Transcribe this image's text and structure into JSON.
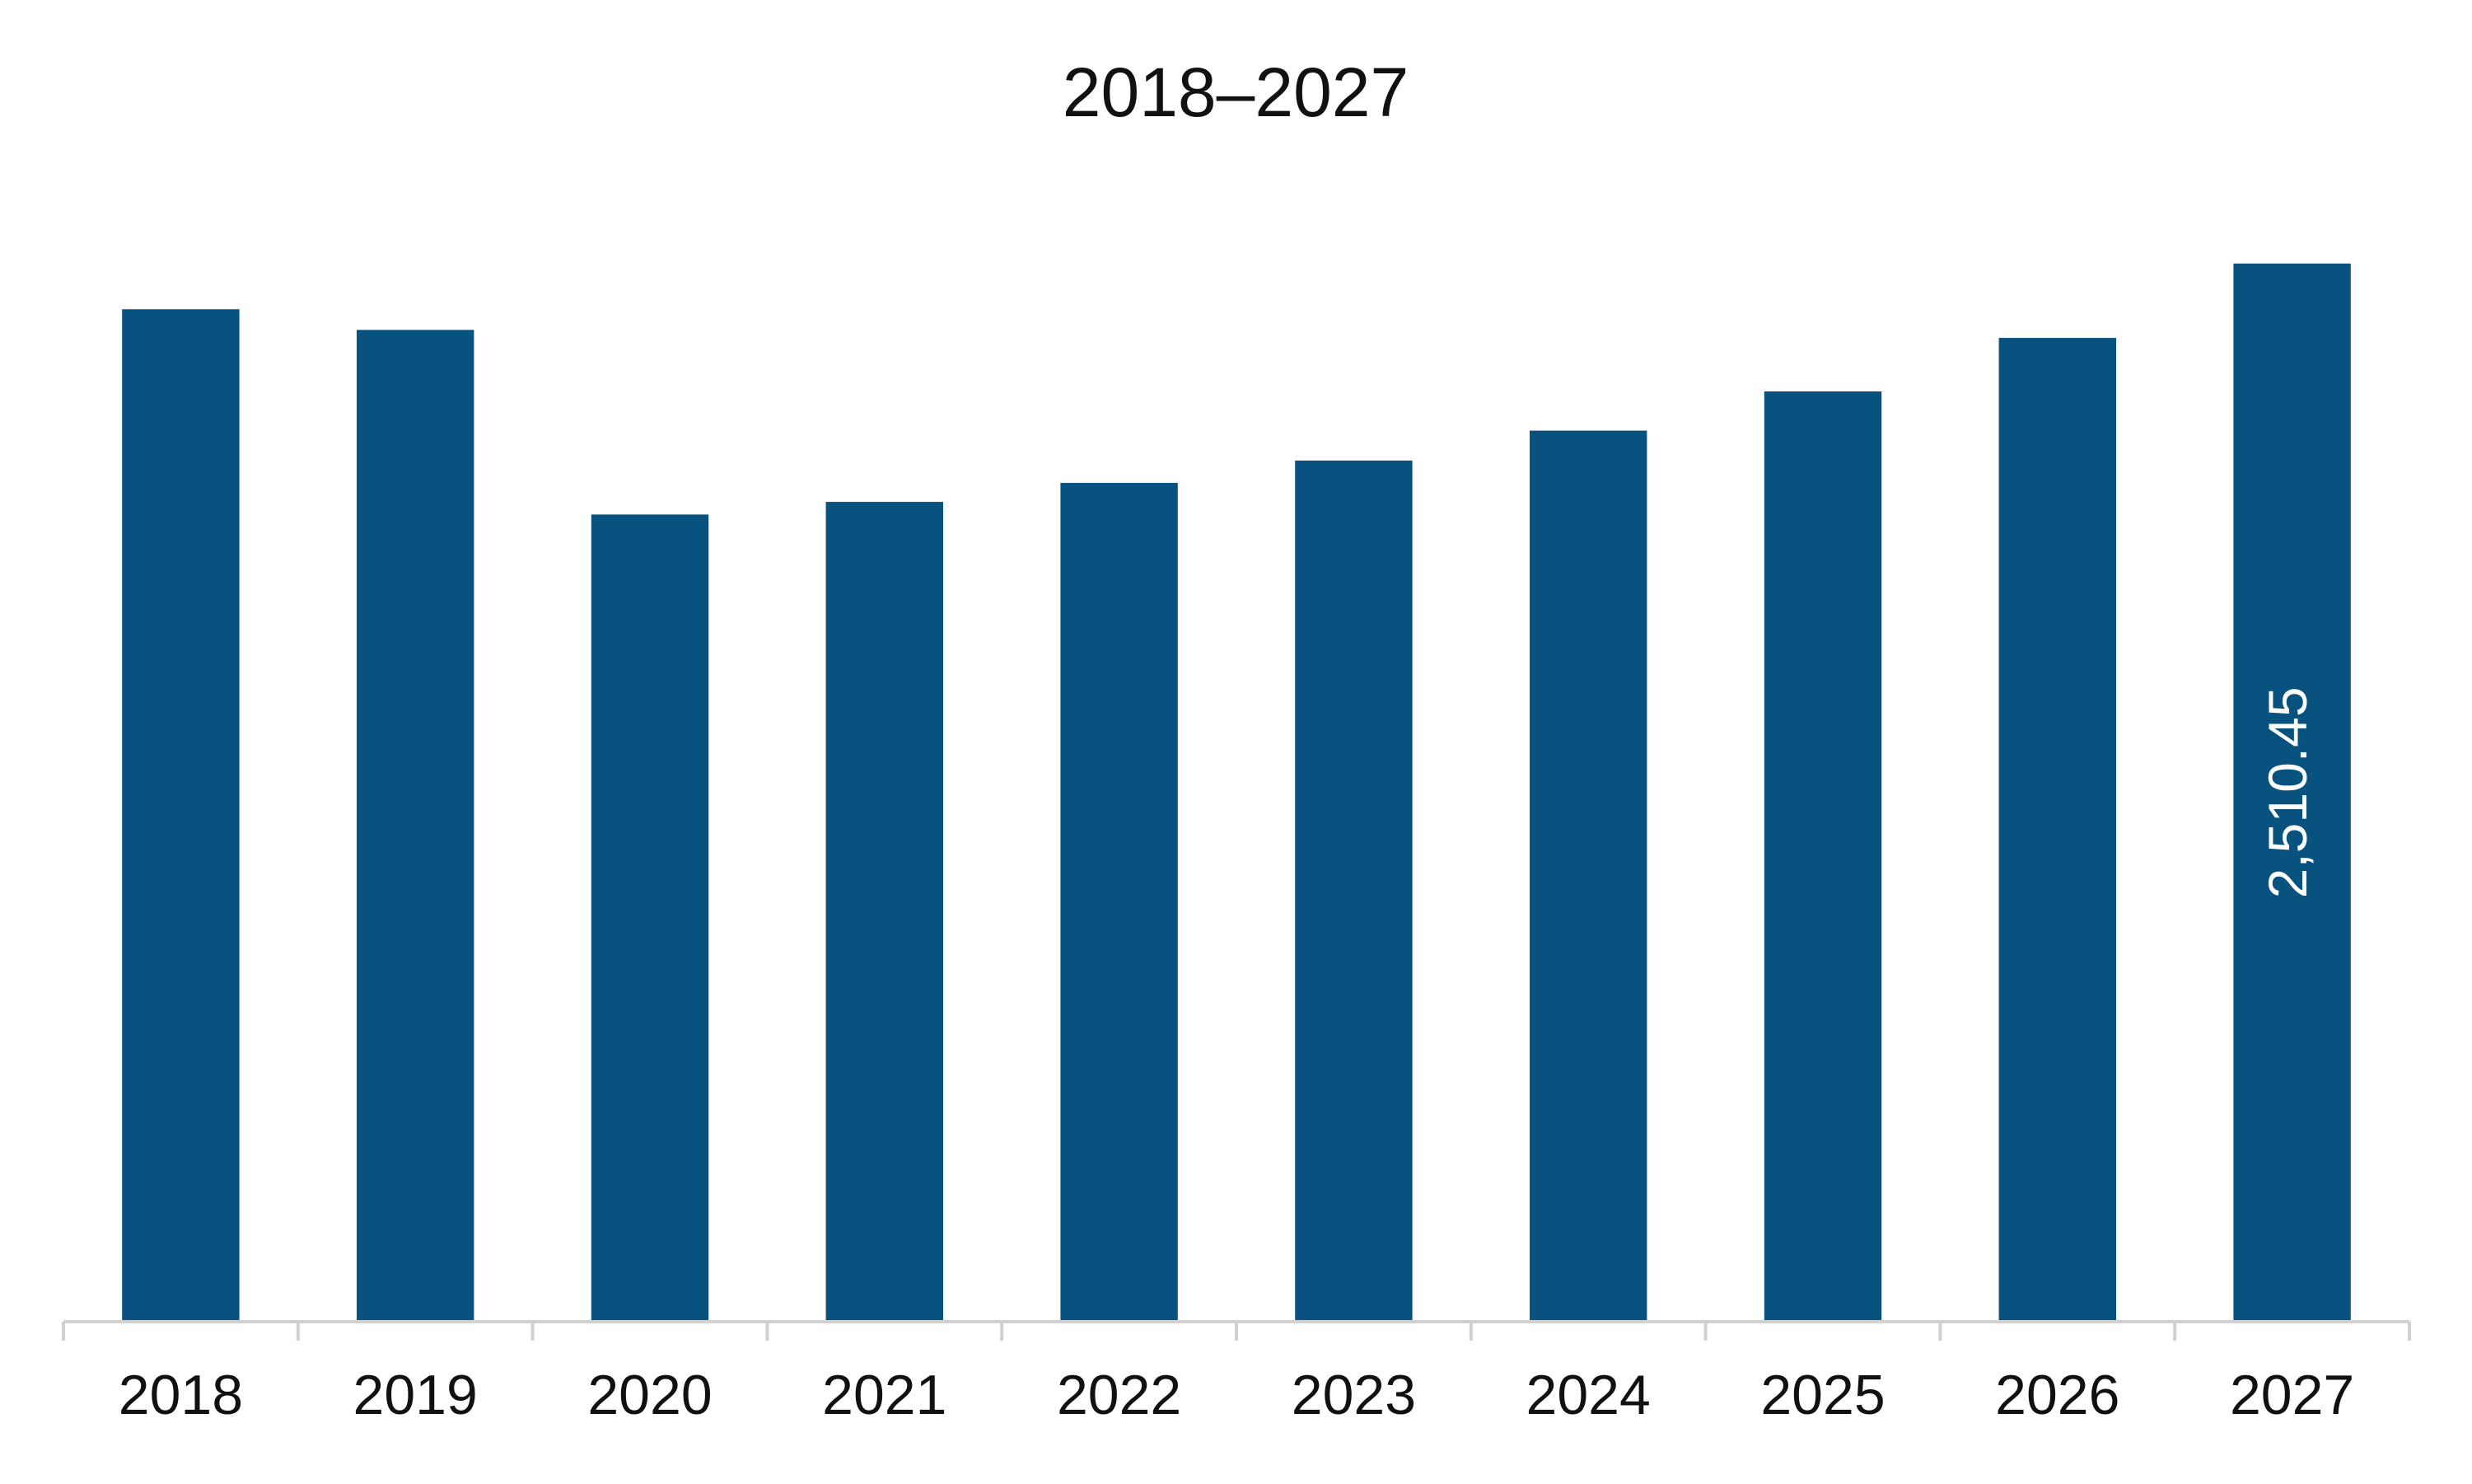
{
  "chart_data": {
    "type": "bar",
    "title": "2018–2027",
    "categories": [
      "2018",
      "2019",
      "2020",
      "2021",
      "2022",
      "2023",
      "2024",
      "2025",
      "2026",
      "2027"
    ],
    "values": [
      2402,
      2353,
      1915,
      1945,
      1990,
      2043,
      2114,
      2207,
      2334,
      2510.45
    ],
    "value_labels": [
      null,
      null,
      null,
      null,
      null,
      null,
      null,
      null,
      null,
      "2,510.45"
    ],
    "color": "#08527f",
    "ylim": [
      0,
      2600
    ],
    "grid": false
  }
}
